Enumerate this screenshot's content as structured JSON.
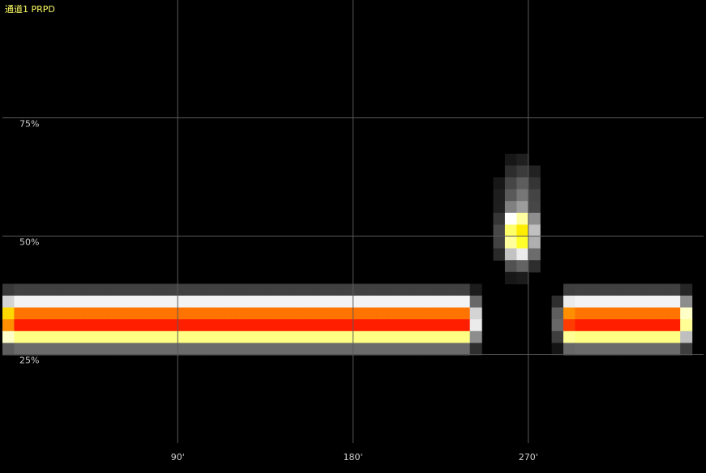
{
  "title": "通道1 PRPD",
  "colors": {
    "background": "#000000",
    "grid": "#5a5a5a",
    "title": "#ffff66",
    "tick_label": "#cfcfcf"
  },
  "chart_data": {
    "type": "heatmap",
    "title": "通道1 PRPD",
    "xlabel": "",
    "ylabel": "",
    "xlim": [
      0,
      360
    ],
    "ylim": [
      0,
      100
    ],
    "grid": true,
    "x_ticks": [
      {
        "value": 90,
        "label": "90'"
      },
      {
        "value": 180,
        "label": "180'"
      },
      {
        "value": 270,
        "label": "270'"
      }
    ],
    "y_ticks": [
      {
        "value": 25,
        "label": "25%"
      },
      {
        "value": 50,
        "label": "50%"
      },
      {
        "value": 75,
        "label": "75%"
      }
    ],
    "colormap": [
      "#000000",
      "#ffffff",
      "#ffff00",
      "#ff0000"
    ],
    "blobs": [
      {
        "x_start": 5,
        "x_end": 238,
        "y_center": 32,
        "y_spread": 3.2,
        "peak": 1.0
      },
      {
        "x_start": 292,
        "x_end": 347,
        "y_center": 32,
        "y_spread": 3.2,
        "peak": 1.0
      },
      {
        "x_start": 264,
        "x_end": 267,
        "y_center": 50.5,
        "y_spread": 4.0,
        "peak": 0.75
      },
      {
        "x_start": 266,
        "x_end": 266,
        "y_center": 57,
        "y_spread": 5.5,
        "peak": 0.22
      }
    ]
  }
}
